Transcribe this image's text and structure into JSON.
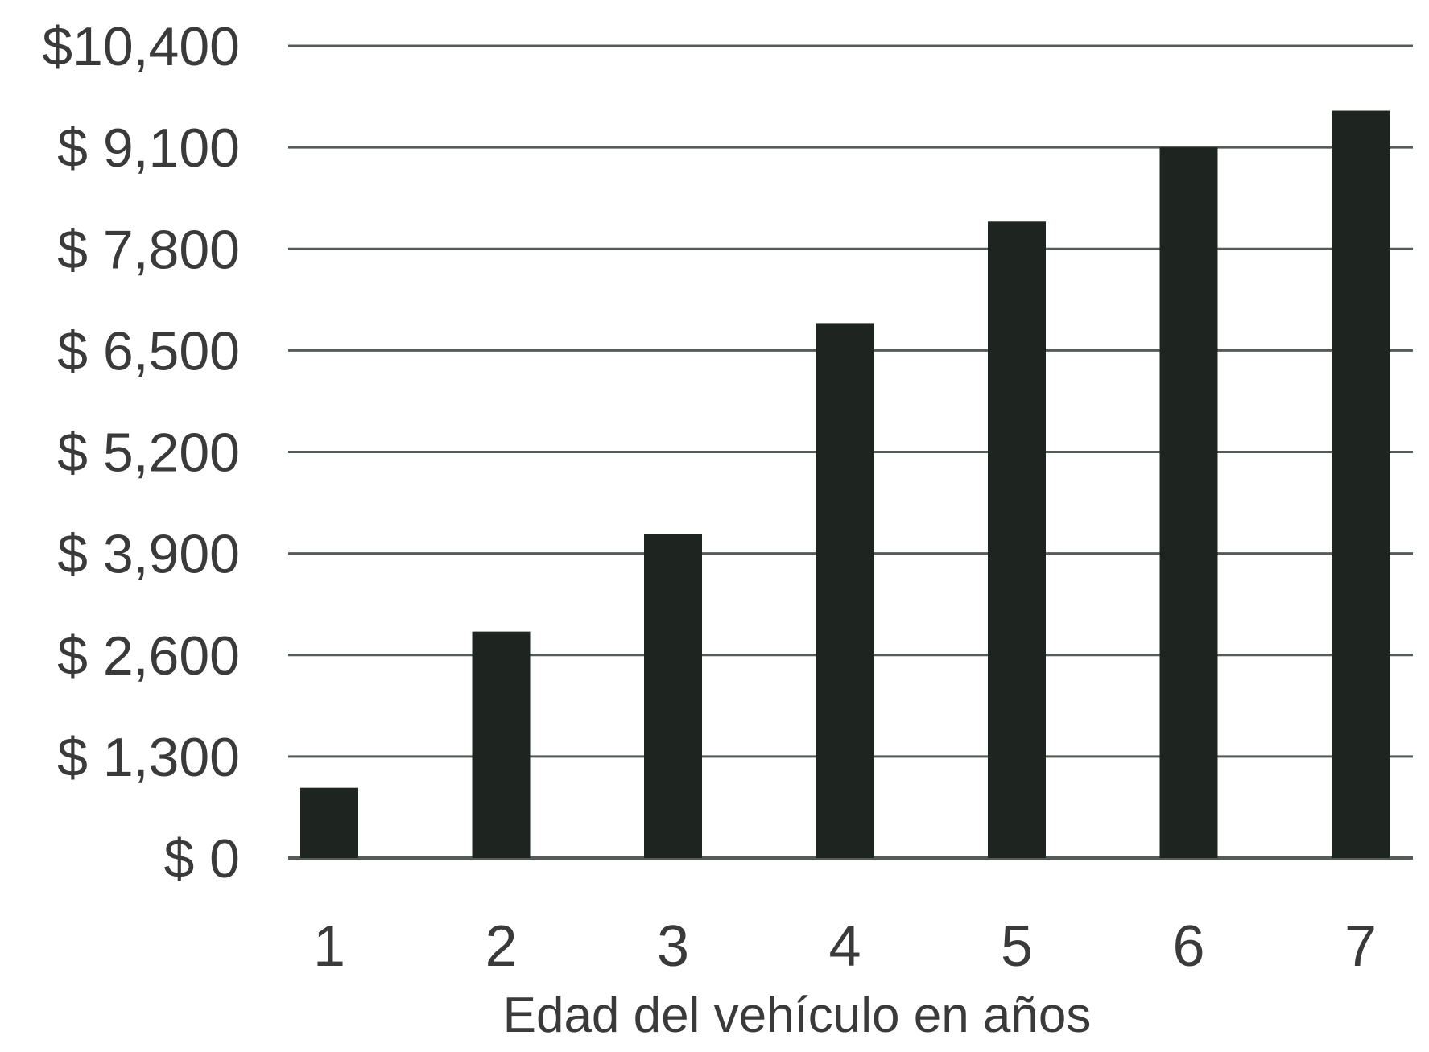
{
  "chart_data": {
    "type": "bar",
    "title": "",
    "xlabel": "Edad del vehículo en años",
    "ylabel": "",
    "categories": [
      "1",
      "2",
      "3",
      "4",
      "5",
      "6",
      "7"
    ],
    "values": [
      900,
      2900,
      4150,
      6850,
      8150,
      9100,
      9570
    ],
    "ylim": [
      0,
      10400
    ],
    "y_ticks": [
      0,
      1300,
      2600,
      3900,
      5200,
      6500,
      7800,
      9100,
      10400
    ],
    "y_tick_labels": [
      "$ 0",
      "$ 1,300",
      "$ 2,600",
      "$ 3,900",
      "$ 5,200",
      "$ 6,500",
      "$ 7,800",
      "$ 9,100",
      "$10,400"
    ],
    "grid": true,
    "legend": "none",
    "colors": {
      "bar": "#1e2420",
      "grid": "#555c58",
      "text": "#3a3a3a"
    }
  }
}
